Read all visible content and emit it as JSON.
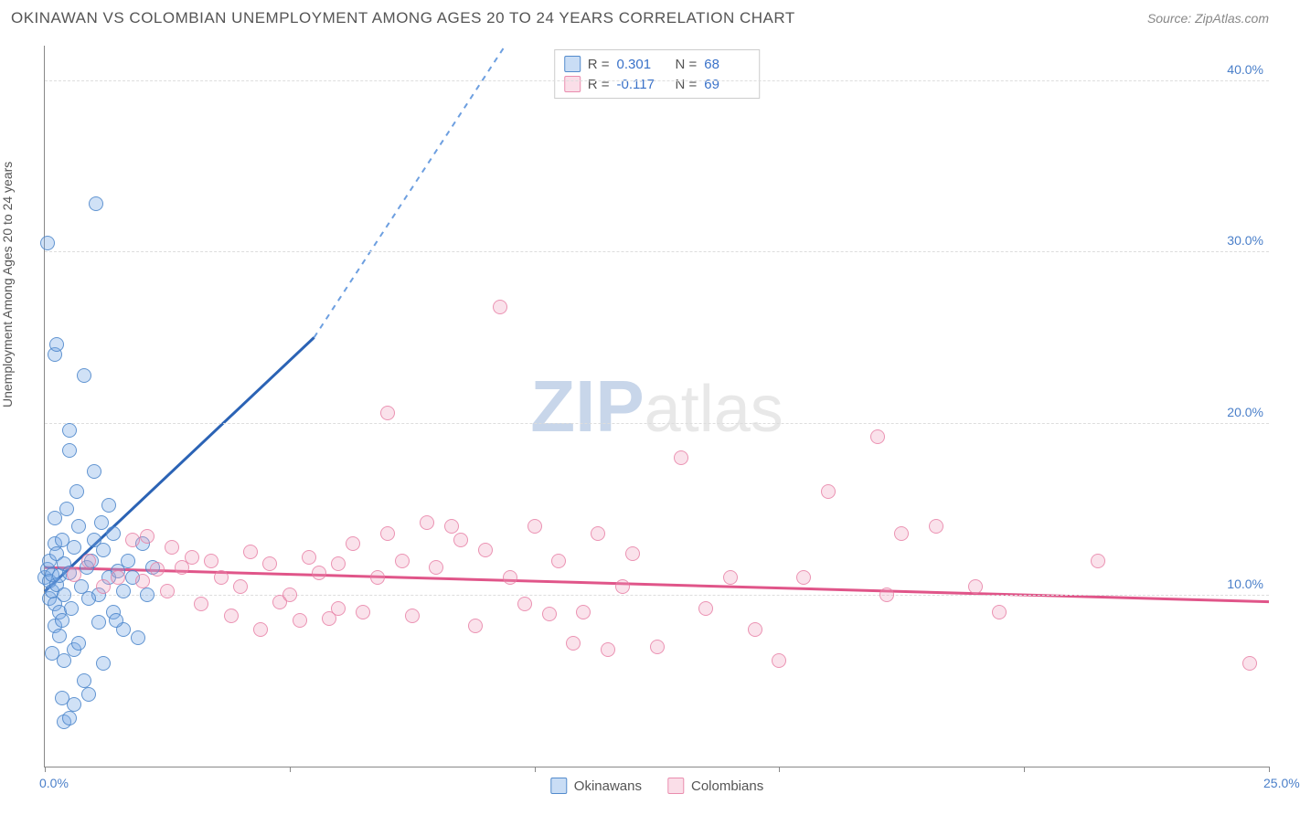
{
  "title": "OKINAWAN VS COLOMBIAN UNEMPLOYMENT AMONG AGES 20 TO 24 YEARS CORRELATION CHART",
  "source": "Source: ZipAtlas.com",
  "y_axis_title": "Unemployment Among Ages 20 to 24 years",
  "watermark_bold": "ZIP",
  "watermark_light": "atlas",
  "chart": {
    "type": "scatter-correlation",
    "xlim": [
      0,
      25
    ],
    "ylim": [
      0,
      42
    ],
    "x_ticks": [
      0,
      5,
      10,
      15,
      20,
      25
    ],
    "x_tick_labels": {
      "0": "0.0%",
      "25": "25.0%"
    },
    "y_gridlines": [
      10,
      20,
      30,
      40
    ],
    "y_tick_labels": {
      "10": "10.0%",
      "20": "20.0%",
      "30": "30.0%",
      "40": "40.0%"
    },
    "plot_bg": "#ffffff",
    "grid_color": "#dddddd",
    "axis_color": "#888888",
    "label_color": "#4a7fc9",
    "series": [
      {
        "name": "Okinawans",
        "color_fill": "rgba(120,170,230,0.35)",
        "color_stroke": "rgba(70,130,200,0.8)",
        "r_value": "0.301",
        "n_value": "68",
        "regression": {
          "x1": 0,
          "y1": 10.2,
          "x2": 5.5,
          "y2": 25.0,
          "dash_to_x": 9.4,
          "dash_to_y": 42,
          "solid_color": "#2b63b5",
          "dash_color": "#6d9fe0"
        },
        "points": [
          [
            0.0,
            11.0
          ],
          [
            0.05,
            11.5
          ],
          [
            0.1,
            10.8
          ],
          [
            0.1,
            9.8
          ],
          [
            0.1,
            12.0
          ],
          [
            0.15,
            11.2
          ],
          [
            0.15,
            10.2
          ],
          [
            0.2,
            13.0
          ],
          [
            0.2,
            9.5
          ],
          [
            0.2,
            8.2
          ],
          [
            0.2,
            14.5
          ],
          [
            0.25,
            10.6
          ],
          [
            0.25,
            12.4
          ],
          [
            0.3,
            11.1
          ],
          [
            0.3,
            7.6
          ],
          [
            0.3,
            9.0
          ],
          [
            0.35,
            8.5
          ],
          [
            0.35,
            13.2
          ],
          [
            0.4,
            10.0
          ],
          [
            0.4,
            11.8
          ],
          [
            0.4,
            6.2
          ],
          [
            0.45,
            15.0
          ],
          [
            0.5,
            11.3
          ],
          [
            0.5,
            18.4
          ],
          [
            0.5,
            19.6
          ],
          [
            0.55,
            9.2
          ],
          [
            0.6,
            6.8
          ],
          [
            0.6,
            12.8
          ],
          [
            0.65,
            16.0
          ],
          [
            0.7,
            7.2
          ],
          [
            0.7,
            14.0
          ],
          [
            0.75,
            10.5
          ],
          [
            0.8,
            22.8
          ],
          [
            0.8,
            5.0
          ],
          [
            0.85,
            11.6
          ],
          [
            0.9,
            4.2
          ],
          [
            0.95,
            12.0
          ],
          [
            1.0,
            13.2
          ],
          [
            1.0,
            17.2
          ],
          [
            0.05,
            30.5
          ],
          [
            0.2,
            24.0
          ],
          [
            0.25,
            24.6
          ],
          [
            1.05,
            32.8
          ],
          [
            1.1,
            10.0
          ],
          [
            1.1,
            8.4
          ],
          [
            1.2,
            6.0
          ],
          [
            1.2,
            12.6
          ],
          [
            1.3,
            11.0
          ],
          [
            1.3,
            15.2
          ],
          [
            1.4,
            9.0
          ],
          [
            1.4,
            13.6
          ],
          [
            1.5,
            11.4
          ],
          [
            1.6,
            8.0
          ],
          [
            1.6,
            10.2
          ],
          [
            1.7,
            12.0
          ],
          [
            1.8,
            11.0
          ],
          [
            1.9,
            7.5
          ],
          [
            2.0,
            13.0
          ],
          [
            2.1,
            10.0
          ],
          [
            2.2,
            11.6
          ],
          [
            0.4,
            2.6
          ],
          [
            0.5,
            2.8
          ],
          [
            0.35,
            4.0
          ],
          [
            0.6,
            3.6
          ],
          [
            0.9,
            9.8
          ],
          [
            1.15,
            14.2
          ],
          [
            1.45,
            8.5
          ],
          [
            0.15,
            6.6
          ]
        ]
      },
      {
        "name": "Colombians",
        "color_fill": "rgba(240,160,190,0.3)",
        "color_stroke": "rgba(230,120,160,0.75)",
        "r_value": "-0.117",
        "n_value": "69",
        "regression": {
          "x1": 0,
          "y1": 11.6,
          "x2": 25,
          "y2": 9.6,
          "solid_color": "#e05589"
        },
        "points": [
          [
            0.6,
            11.2
          ],
          [
            0.9,
            12.0
          ],
          [
            1.2,
            10.5
          ],
          [
            1.5,
            11.0
          ],
          [
            1.8,
            13.2
          ],
          [
            2.0,
            10.8
          ],
          [
            2.1,
            13.4
          ],
          [
            2.3,
            11.5
          ],
          [
            2.5,
            10.2
          ],
          [
            2.6,
            12.8
          ],
          [
            2.8,
            11.6
          ],
          [
            3.0,
            12.2
          ],
          [
            3.2,
            9.5
          ],
          [
            3.4,
            12.0
          ],
          [
            3.6,
            11.0
          ],
          [
            3.8,
            8.8
          ],
          [
            4.0,
            10.5
          ],
          [
            4.2,
            12.5
          ],
          [
            4.4,
            8.0
          ],
          [
            4.6,
            11.8
          ],
          [
            4.8,
            9.6
          ],
          [
            5.0,
            10.0
          ],
          [
            5.2,
            8.5
          ],
          [
            5.4,
            12.2
          ],
          [
            5.6,
            11.3
          ],
          [
            5.8,
            8.6
          ],
          [
            6.0,
            9.2
          ],
          [
            6.3,
            13.0
          ],
          [
            6.5,
            9.0
          ],
          [
            6.8,
            11.0
          ],
          [
            7.0,
            13.6
          ],
          [
            7.0,
            20.6
          ],
          [
            7.3,
            12.0
          ],
          [
            7.5,
            8.8
          ],
          [
            7.8,
            14.2
          ],
          [
            8.0,
            11.6
          ],
          [
            8.3,
            14.0
          ],
          [
            8.5,
            13.2
          ],
          [
            8.8,
            8.2
          ],
          [
            9.0,
            12.6
          ],
          [
            9.3,
            26.8
          ],
          [
            9.5,
            11.0
          ],
          [
            9.8,
            9.5
          ],
          [
            10.0,
            14.0
          ],
          [
            10.3,
            8.9
          ],
          [
            10.5,
            12.0
          ],
          [
            10.8,
            7.2
          ],
          [
            11.0,
            9.0
          ],
          [
            11.3,
            13.6
          ],
          [
            11.5,
            6.8
          ],
          [
            11.8,
            10.5
          ],
          [
            12.0,
            12.4
          ],
          [
            12.5,
            7.0
          ],
          [
            13.0,
            18.0
          ],
          [
            13.5,
            9.2
          ],
          [
            14.0,
            11.0
          ],
          [
            14.5,
            8.0
          ],
          [
            15.0,
            6.2
          ],
          [
            15.5,
            11.0
          ],
          [
            16.0,
            16.0
          ],
          [
            17.0,
            19.2
          ],
          [
            17.2,
            10.0
          ],
          [
            17.5,
            13.6
          ],
          [
            18.2,
            14.0
          ],
          [
            19.0,
            10.5
          ],
          [
            19.5,
            9.0
          ],
          [
            21.5,
            12.0
          ],
          [
            24.6,
            6.0
          ],
          [
            6.0,
            11.8
          ]
        ]
      }
    ],
    "legend_bottom": [
      {
        "label": "Okinawans",
        "class": "blue"
      },
      {
        "label": "Colombians",
        "class": "pink"
      }
    ]
  }
}
